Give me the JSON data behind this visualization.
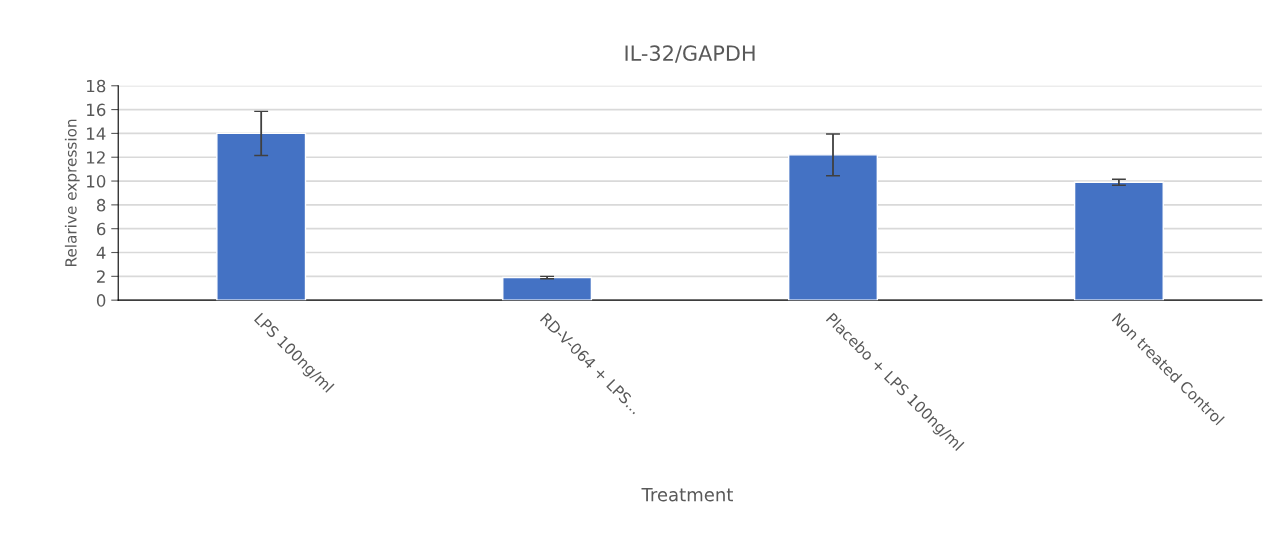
{
  "chart_data": {
    "type": "bar",
    "title": "IL-32/GAPDH",
    "xlabel": "Treatment",
    "ylabel": "Relarive expression",
    "categories": [
      "LPS 100ng/ml",
      "RD-V-064 + LPS...",
      "Placebo + LPS 100ng/ml",
      "Non treated Control"
    ],
    "values": [
      14.0,
      1.9,
      12.2,
      9.9
    ],
    "errors": [
      1.85,
      0.1,
      1.75,
      0.25
    ],
    "color": "#4472c4",
    "ylim": [
      0,
      18
    ],
    "yticks": [
      0,
      2,
      4,
      6,
      8,
      10,
      12,
      14,
      16,
      18
    ],
    "grid": "y"
  }
}
